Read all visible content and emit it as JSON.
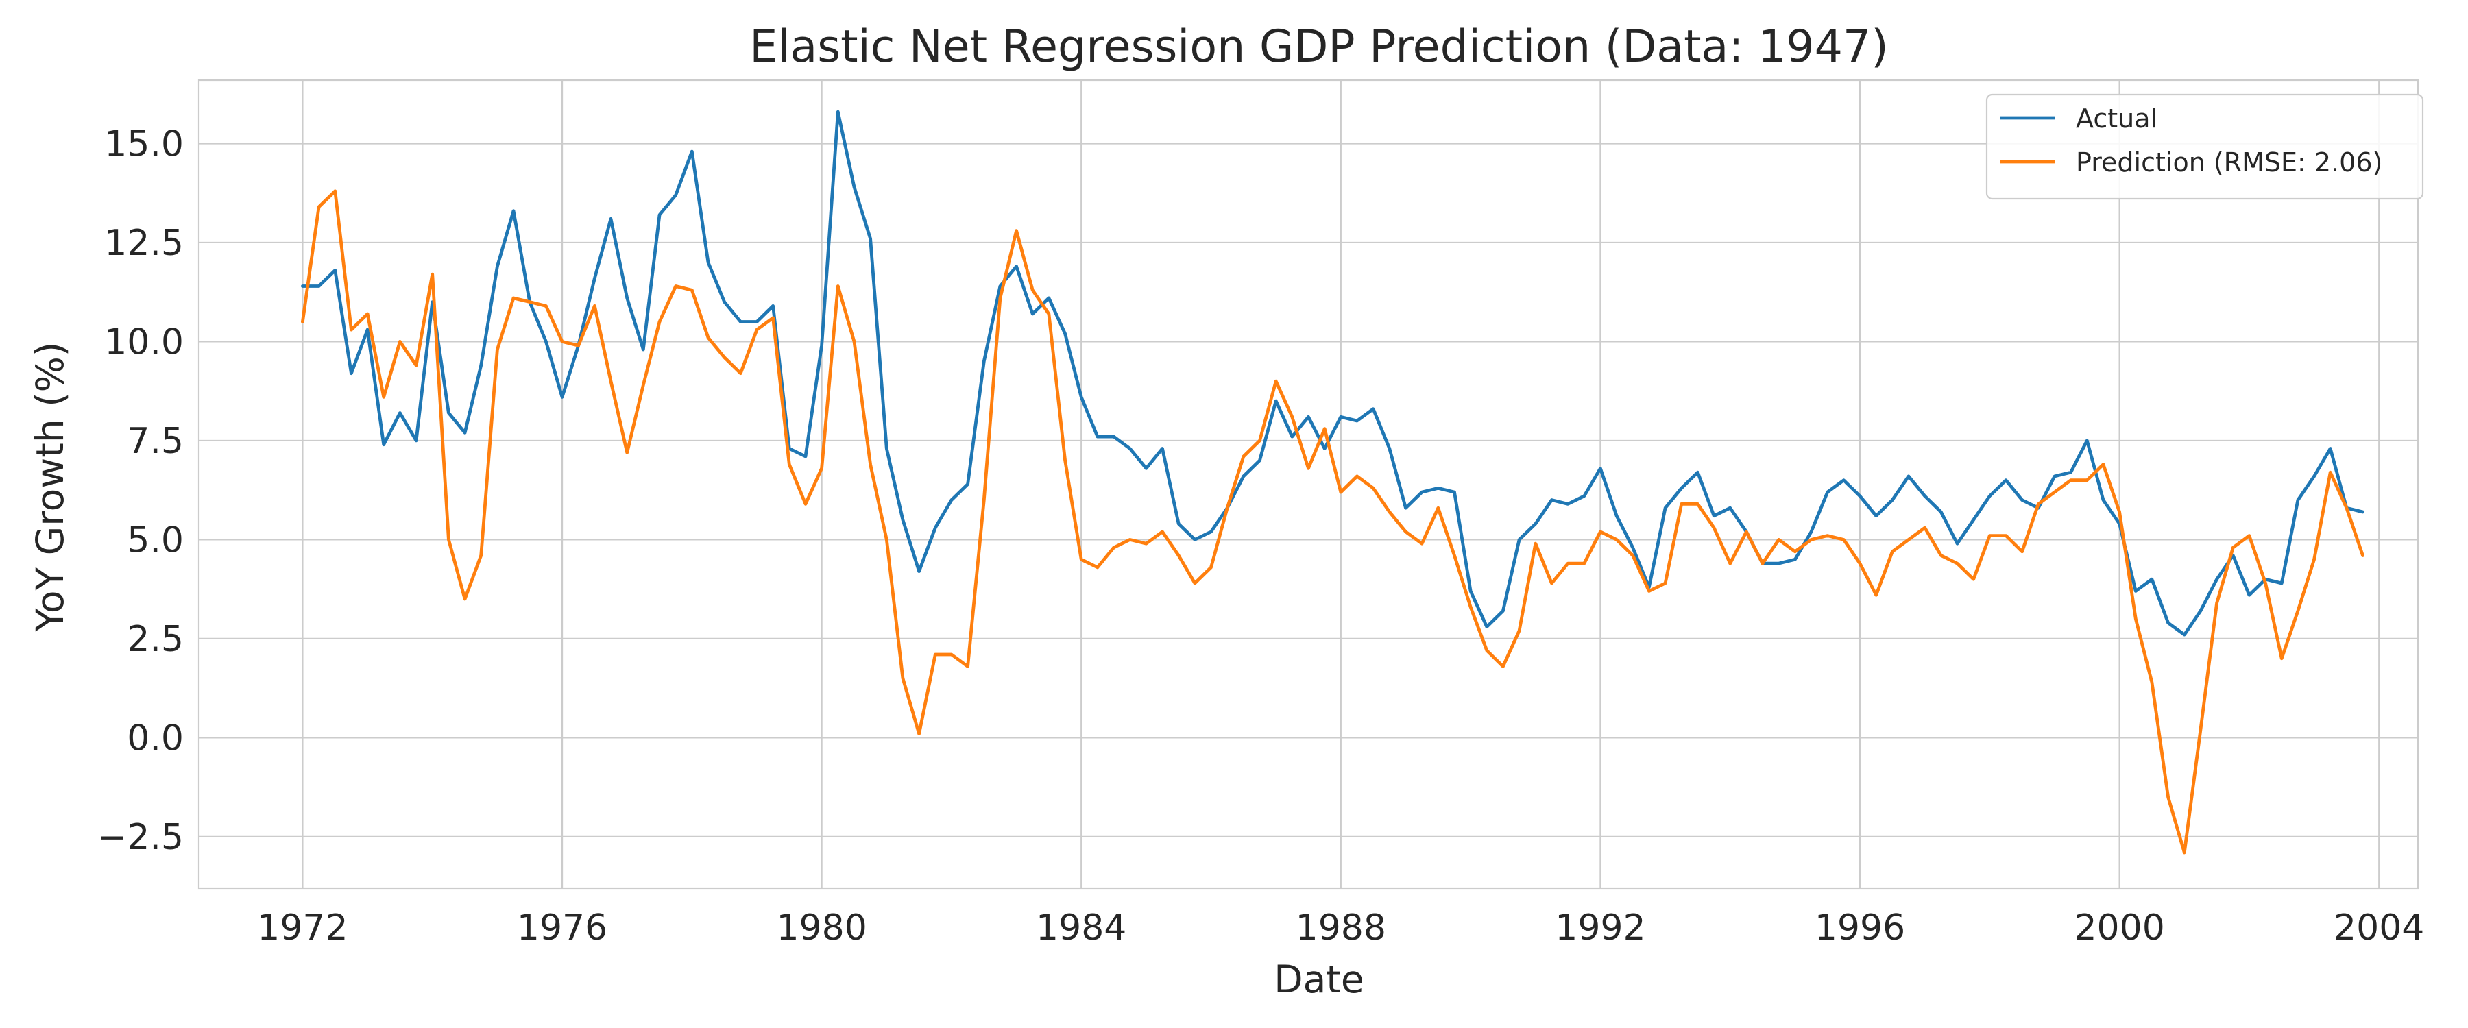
{
  "chart_data": {
    "type": "line",
    "title": "Elastic Net Regression GDP Prediction (Data: 1947)",
    "xlabel": "Date",
    "ylabel": "YoY Growth (%)",
    "xlim": [
      1970.4,
      2004.6
    ],
    "ylim": [
      -3.8,
      16.6
    ],
    "x_ticks": [
      1972,
      1976,
      1980,
      1984,
      1988,
      1992,
      1996,
      2000,
      2004
    ],
    "y_ticks": [
      -2.5,
      0.0,
      2.5,
      5.0,
      7.5,
      10.0,
      12.5,
      15.0
    ],
    "y_tick_labels": [
      "−2.5",
      "0.0",
      "2.5",
      "5.0",
      "7.5",
      "10.0",
      "12.5",
      "15.0"
    ],
    "grid": true,
    "legend_position": "top-right",
    "colors": {
      "Actual": "#1f77b4",
      "Prediction": "#ff7f0e"
    },
    "x_start": 1972.0,
    "x_step": 0.25,
    "x_unit": "years",
    "series": [
      {
        "name": "Actual",
        "legend_label": "Actual",
        "values": [
          11.4,
          11.4,
          11.8,
          9.2,
          10.3,
          7.4,
          8.2,
          7.5,
          11.0,
          8.2,
          7.7,
          9.4,
          11.9,
          13.3,
          11.0,
          10.0,
          8.6,
          9.9,
          11.6,
          13.1,
          11.1,
          9.8,
          13.2,
          13.7,
          14.8,
          12.0,
          11.0,
          10.5,
          10.5,
          10.9,
          7.3,
          7.1,
          9.9,
          15.8,
          13.9,
          12.6,
          7.3,
          5.5,
          4.2,
          5.3,
          6.0,
          6.4,
          9.5,
          11.4,
          11.9,
          10.7,
          11.1,
          10.2,
          8.6,
          7.6,
          7.6,
          7.3,
          6.8,
          7.3,
          5.4,
          5.0,
          5.2,
          5.8,
          6.6,
          7.0,
          8.5,
          7.6,
          8.1,
          7.3,
          8.1,
          8.0,
          8.3,
          7.3,
          5.8,
          6.2,
          6.3,
          6.2,
          3.7,
          2.8,
          3.2,
          5.0,
          5.4,
          6.0,
          5.9,
          6.1,
          6.8,
          5.6,
          4.8,
          3.8,
          5.8,
          6.3,
          6.7,
          5.6,
          5.8,
          5.2,
          4.4,
          4.4,
          4.5,
          5.2,
          6.2,
          6.5,
          6.1,
          5.6,
          6.0,
          6.6,
          6.1,
          5.7,
          4.9,
          5.5,
          6.1,
          6.5,
          6.0,
          5.8,
          6.6,
          6.7,
          7.5,
          6.0,
          5.4,
          3.7,
          4.0,
          2.9,
          2.6,
          3.2,
          4.0,
          4.6,
          3.6,
          4.0,
          3.9,
          6.0,
          6.6,
          7.3,
          5.8,
          5.7
        ]
      },
      {
        "name": "Prediction",
        "legend_label": "Prediction (RMSE: 2.06)",
        "values": [
          10.5,
          13.4,
          13.8,
          10.3,
          10.7,
          8.6,
          10.0,
          9.4,
          11.7,
          5.0,
          3.5,
          4.6,
          9.8,
          11.1,
          11.0,
          10.9,
          10.0,
          9.9,
          10.9,
          9.0,
          7.2,
          8.9,
          10.5,
          11.4,
          11.3,
          10.1,
          9.6,
          9.2,
          10.3,
          10.6,
          6.9,
          5.9,
          6.8,
          11.4,
          10.0,
          6.9,
          5.0,
          1.5,
          0.1,
          2.1,
          2.1,
          1.8,
          6.0,
          11.1,
          12.8,
          11.3,
          10.7,
          7.0,
          4.5,
          4.3,
          4.8,
          5.0,
          4.9,
          5.2,
          4.6,
          3.9,
          4.3,
          5.8,
          7.1,
          7.5,
          9.0,
          8.1,
          6.8,
          7.8,
          6.2,
          6.6,
          6.3,
          5.7,
          5.2,
          4.9,
          5.8,
          4.6,
          3.3,
          2.2,
          1.8,
          2.7,
          4.9,
          3.9,
          4.4,
          4.4,
          5.2,
          5.0,
          4.6,
          3.7,
          3.9,
          5.9,
          5.9,
          5.3,
          4.4,
          5.2,
          4.4,
          5.0,
          4.7,
          5.0,
          5.1,
          5.0,
          4.4,
          3.6,
          4.7,
          5.0,
          5.3,
          4.6,
          4.4,
          4.0,
          5.1,
          5.1,
          4.7,
          5.9,
          6.2,
          6.5,
          6.5,
          6.9,
          5.7,
          3.0,
          1.4,
          -1.5,
          -2.9,
          0.2,
          3.4,
          4.8,
          5.1,
          3.9,
          2.0,
          3.2,
          4.5,
          6.7,
          5.8,
          4.6
        ]
      }
    ]
  }
}
